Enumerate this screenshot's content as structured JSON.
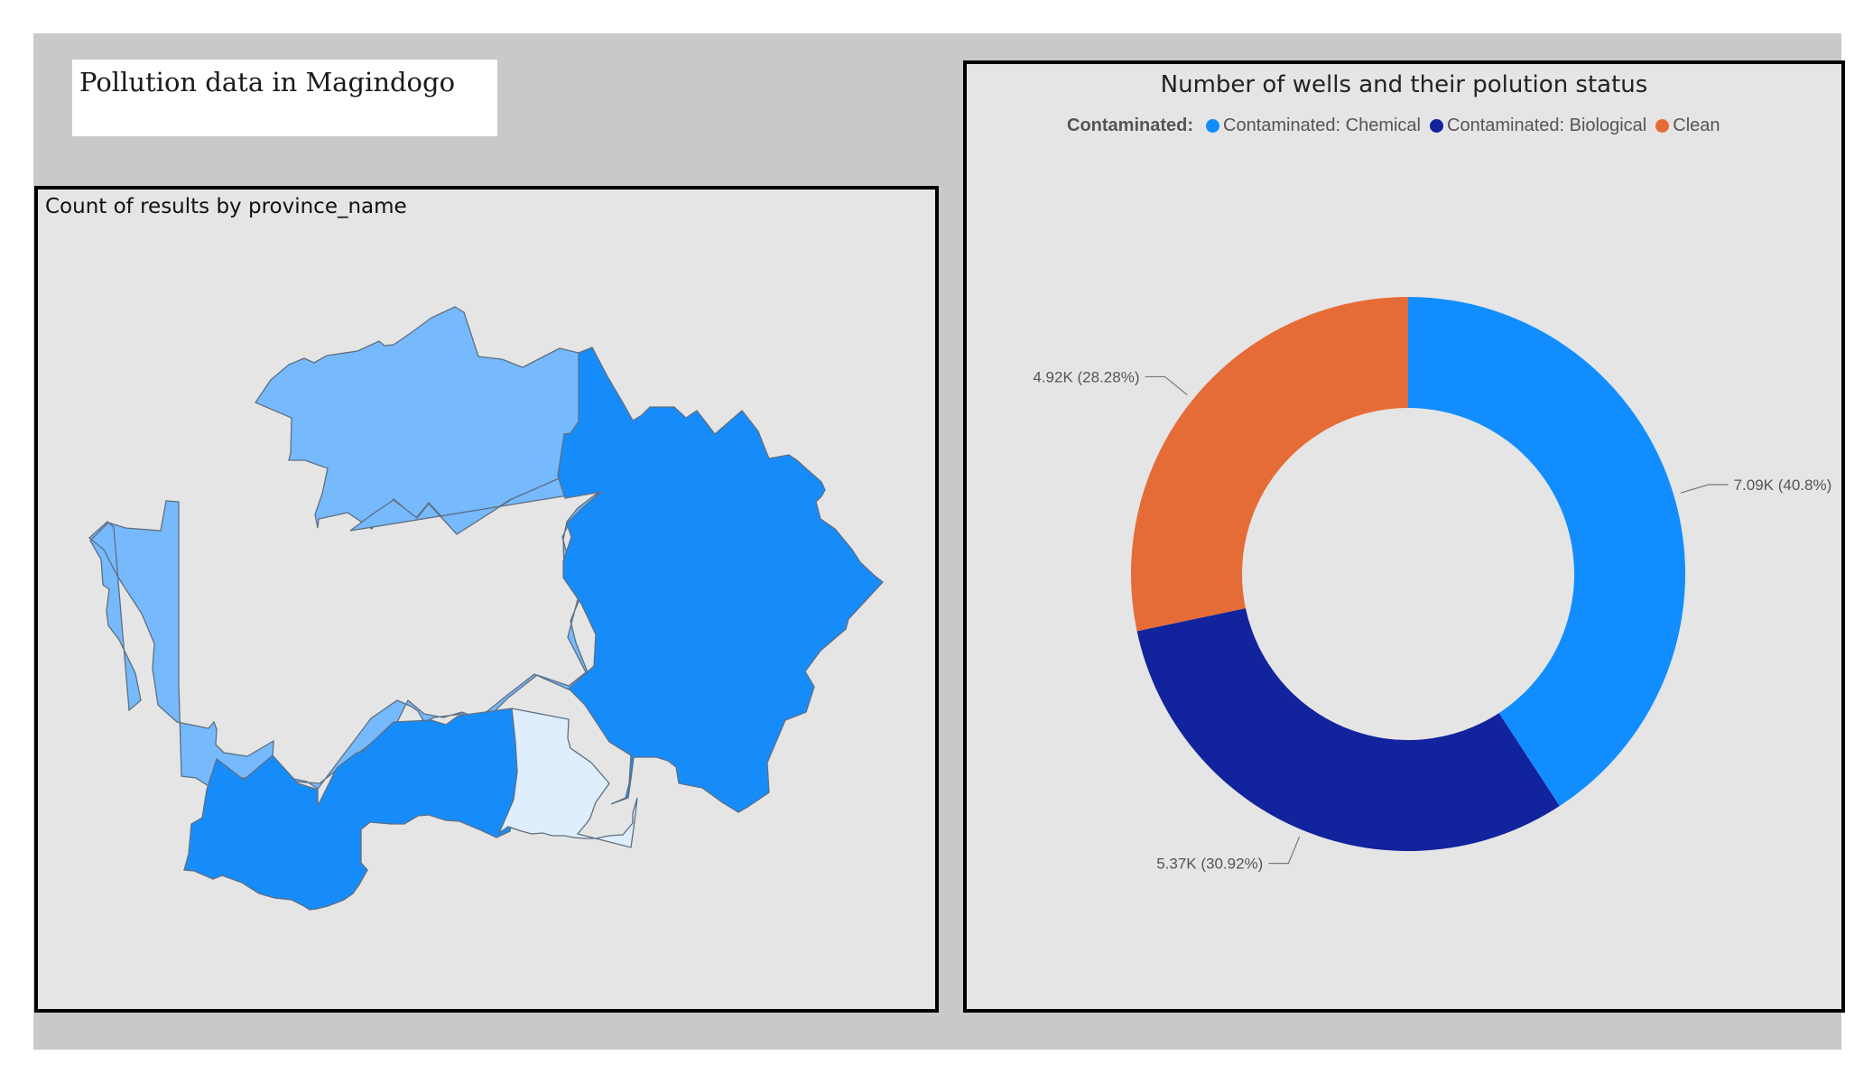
{
  "title": "Pollution data in Magindogo",
  "map": {
    "title": "Count of results by province_name",
    "colors": {
      "light": "#76b9fc",
      "dark": "#168cfb",
      "very_light": "#dfeefc"
    }
  },
  "donut": {
    "title": "Number of wells and their polution status",
    "legend_title": "Contaminated:",
    "legend": [
      {
        "label": "Contaminated: Chemical",
        "color": "#118dff"
      },
      {
        "label": "Contaminated: Biological",
        "color": "#12239e"
      },
      {
        "label": "Clean",
        "color": "#e66c37"
      }
    ]
  },
  "chart_data": {
    "type": "pie",
    "donut": true,
    "title": "Number of wells and their polution status",
    "legend_position": "top",
    "slices": [
      {
        "name": "Contaminated: Chemical",
        "value": 7090,
        "percent": 40.8,
        "label": "7.09K (40.8%)",
        "color": "#118dff"
      },
      {
        "name": "Contaminated: Biological",
        "value": 5370,
        "percent": 30.92,
        "label": "5.37K (30.92%)",
        "color": "#12239e"
      },
      {
        "name": "Clean",
        "value": 4920,
        "percent": 28.28,
        "label": "4.92K (28.28%)",
        "color": "#e66c37"
      }
    ]
  }
}
